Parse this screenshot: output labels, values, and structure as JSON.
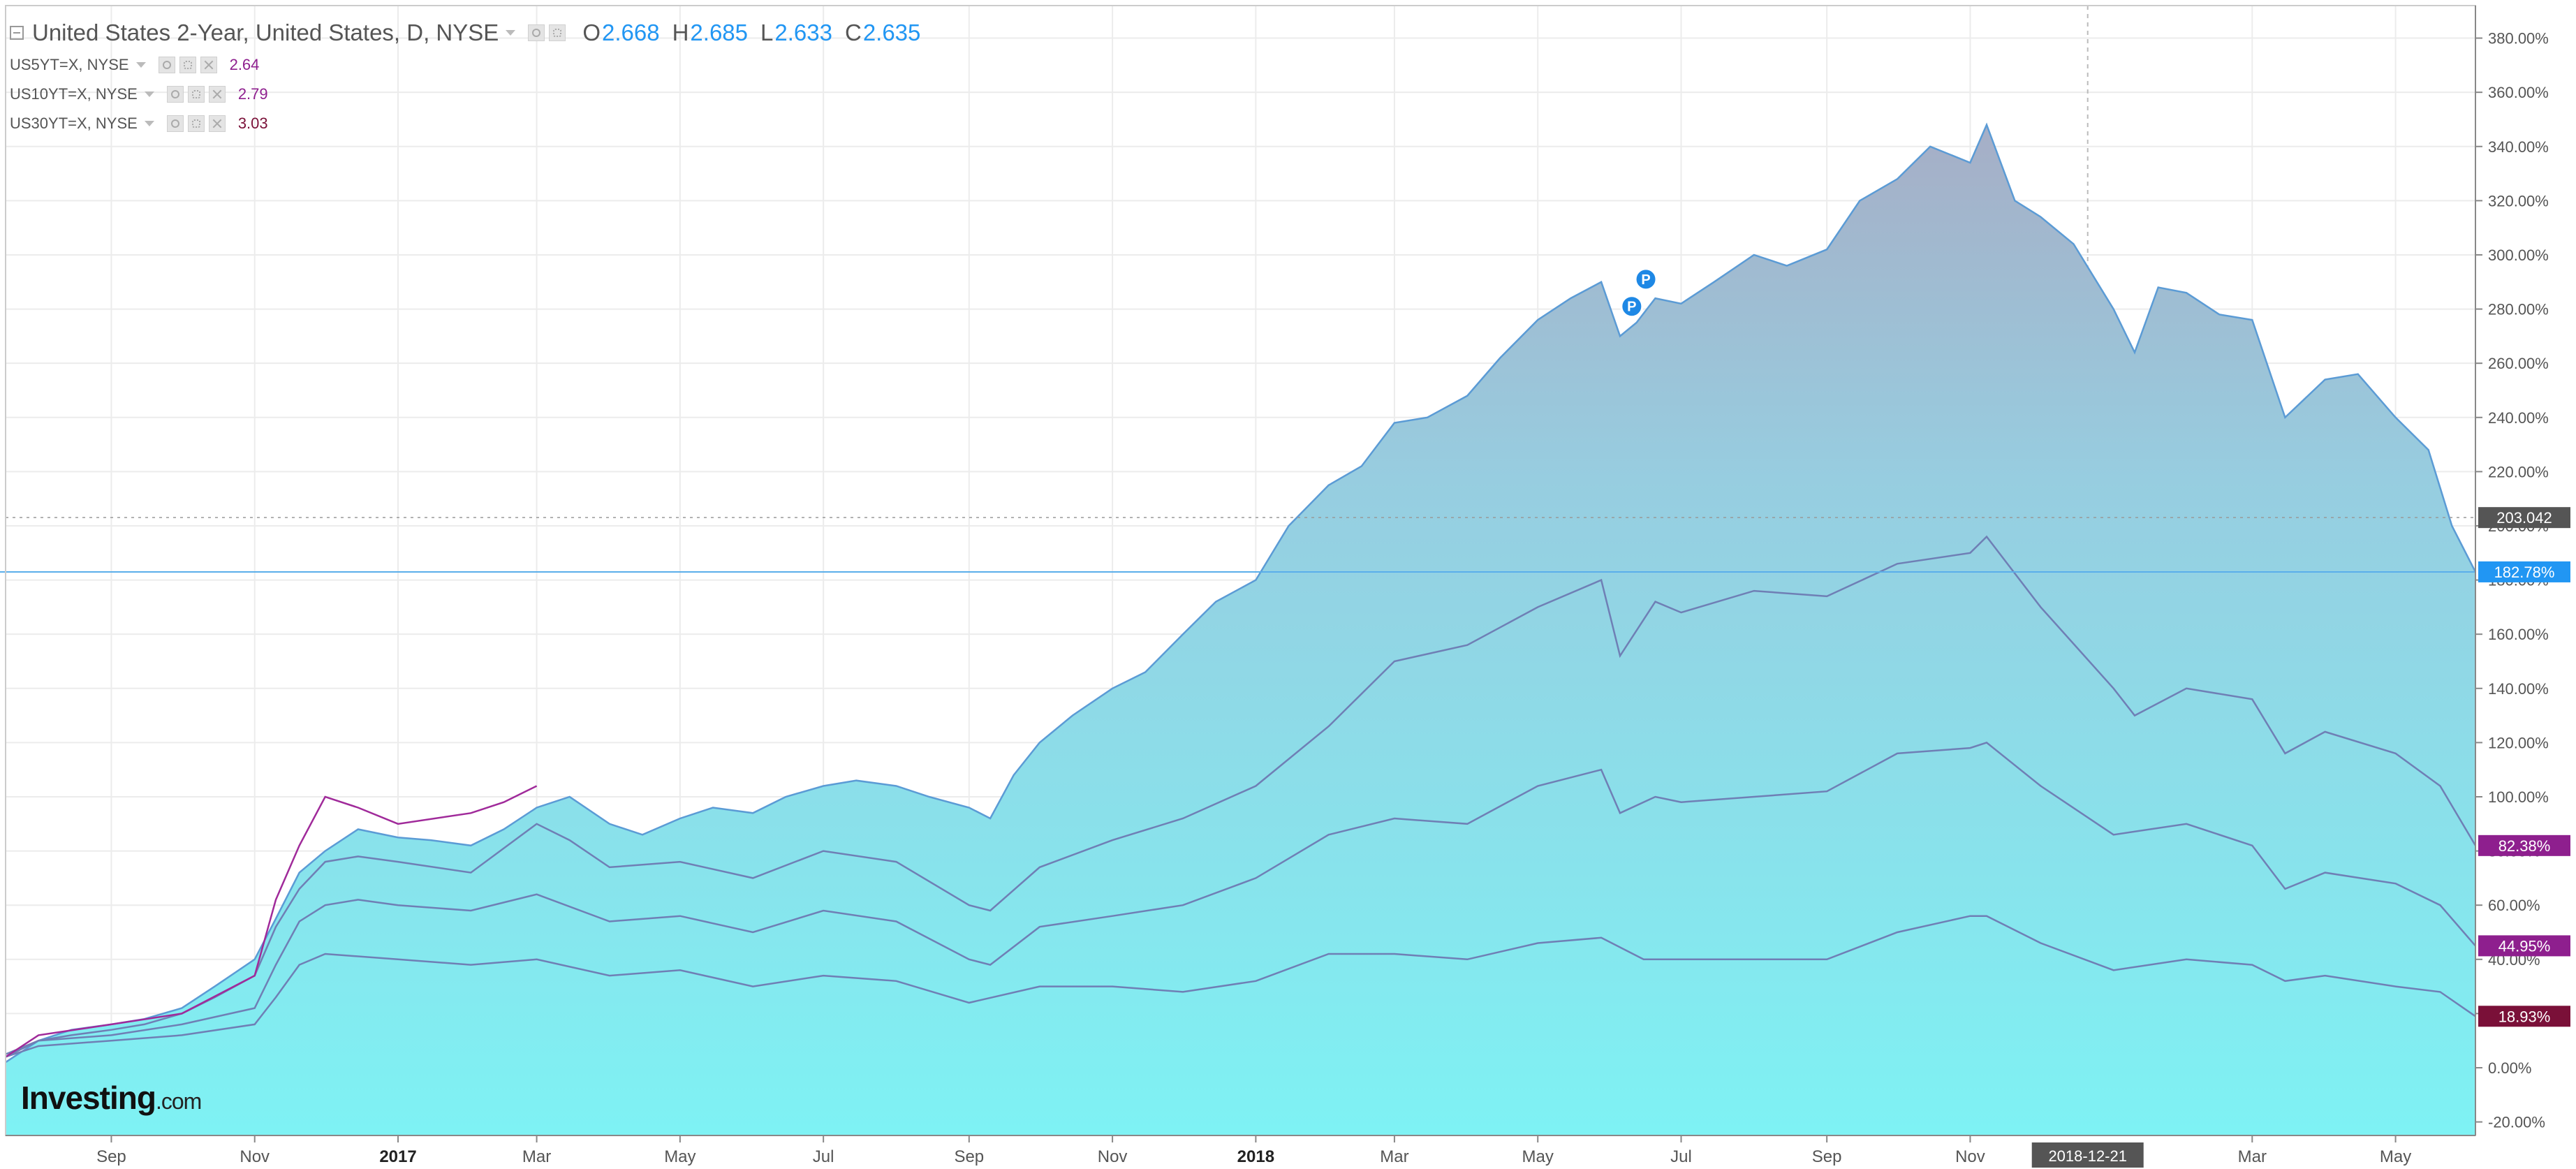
{
  "legend": {
    "main": {
      "name": "United States 2-Year, United States, D, NYSE",
      "o_label": "O",
      "o": "2.668",
      "h_label": "H",
      "h": "2.685",
      "l_label": "L",
      "l": "2.633",
      "c_label": "C",
      "c": "2.635"
    },
    "overlays": [
      {
        "name": "US5YT=X, NYSE",
        "value": "2.64",
        "color": "#8e1f8e"
      },
      {
        "name": "US10YT=X, NYSE",
        "value": "2.79",
        "color": "#8e1f8e"
      },
      {
        "name": "US30YT=X, NYSE",
        "value": "3.03",
        "color": "#7a1038"
      }
    ]
  },
  "brand": {
    "main": "Investing",
    "suffix": ".com"
  },
  "chart_data": {
    "type": "area",
    "title": "United States 2-Year, United States, D, NYSE",
    "ylabel": "",
    "xlabel": "",
    "ylim": [
      -25,
      392
    ],
    "yticks": [
      -20,
      0,
      20,
      40,
      60,
      80,
      100,
      120,
      140,
      160,
      180,
      200,
      220,
      240,
      260,
      280,
      300,
      320,
      340,
      360,
      380
    ],
    "ytick_suffix": "%",
    "x_range": [
      "2016-07-18",
      "2019-06-04"
    ],
    "xticks": [
      {
        "label": "Sep",
        "date": "2016-09-01",
        "bold": false
      },
      {
        "label": "Nov",
        "date": "2016-11-01",
        "bold": false
      },
      {
        "label": "2017",
        "date": "2017-01-01",
        "bold": true
      },
      {
        "label": "Mar",
        "date": "2017-03-01",
        "bold": false
      },
      {
        "label": "May",
        "date": "2017-05-01",
        "bold": false
      },
      {
        "label": "Jul",
        "date": "2017-07-01",
        "bold": false
      },
      {
        "label": "Sep",
        "date": "2017-09-01",
        "bold": false
      },
      {
        "label": "Nov",
        "date": "2017-11-01",
        "bold": false
      },
      {
        "label": "2018",
        "date": "2018-01-01",
        "bold": true
      },
      {
        "label": "Mar",
        "date": "2018-03-01",
        "bold": false
      },
      {
        "label": "May",
        "date": "2018-05-01",
        "bold": false
      },
      {
        "label": "Jul",
        "date": "2018-07-01",
        "bold": false
      },
      {
        "label": "Sep",
        "date": "2018-09-01",
        "bold": false
      },
      {
        "label": "Nov",
        "date": "2018-11-01",
        "bold": false
      },
      {
        "label": "Mar",
        "date": "2019-03-01",
        "bold": false
      },
      {
        "label": "May",
        "date": "2019-05-01",
        "bold": false
      }
    ],
    "crosshair": {
      "date": "2018-12-21",
      "label": "2018-12-21"
    },
    "price_line": {
      "value": 203.042,
      "label": "203.042"
    },
    "series": [
      {
        "name": "United States 2-Year",
        "color": "#5b9bd5",
        "last_label": "182.78%",
        "label_color": "#2196f3",
        "points": [
          [
            "2016-07-18",
            2
          ],
          [
            "2016-08-01",
            10
          ],
          [
            "2016-08-15",
            14
          ],
          [
            "2016-09-01",
            16
          ],
          [
            "2016-09-15",
            18
          ],
          [
            "2016-10-01",
            22
          ],
          [
            "2016-10-15",
            30
          ],
          [
            "2016-11-01",
            40
          ],
          [
            "2016-11-10",
            55
          ],
          [
            "2016-11-20",
            72
          ],
          [
            "2016-12-01",
            80
          ],
          [
            "2016-12-15",
            88
          ],
          [
            "2017-01-01",
            85
          ],
          [
            "2017-01-15",
            84
          ],
          [
            "2017-02-01",
            82
          ],
          [
            "2017-02-15",
            88
          ],
          [
            "2017-03-01",
            96
          ],
          [
            "2017-03-15",
            100
          ],
          [
            "2017-04-01",
            90
          ],
          [
            "2017-04-15",
            86
          ],
          [
            "2017-05-01",
            92
          ],
          [
            "2017-05-15",
            96
          ],
          [
            "2017-06-01",
            94
          ],
          [
            "2017-06-15",
            100
          ],
          [
            "2017-07-01",
            104
          ],
          [
            "2017-07-15",
            106
          ],
          [
            "2017-08-01",
            104
          ],
          [
            "2017-08-15",
            100
          ],
          [
            "2017-09-01",
            96
          ],
          [
            "2017-09-10",
            92
          ],
          [
            "2017-09-20",
            108
          ],
          [
            "2017-10-01",
            120
          ],
          [
            "2017-10-15",
            130
          ],
          [
            "2017-11-01",
            140
          ],
          [
            "2017-11-15",
            146
          ],
          [
            "2017-12-01",
            160
          ],
          [
            "2017-12-15",
            172
          ],
          [
            "2018-01-01",
            180
          ],
          [
            "2018-01-15",
            200
          ],
          [
            "2018-02-01",
            215
          ],
          [
            "2018-02-15",
            222
          ],
          [
            "2018-03-01",
            238
          ],
          [
            "2018-03-15",
            240
          ],
          [
            "2018-04-01",
            248
          ],
          [
            "2018-04-15",
            262
          ],
          [
            "2018-05-01",
            276
          ],
          [
            "2018-05-15",
            284
          ],
          [
            "2018-05-28",
            290
          ],
          [
            "2018-06-05",
            270
          ],
          [
            "2018-06-12",
            275
          ],
          [
            "2018-06-20",
            284
          ],
          [
            "2018-07-01",
            282
          ],
          [
            "2018-07-15",
            290
          ],
          [
            "2018-08-01",
            300
          ],
          [
            "2018-08-15",
            296
          ],
          [
            "2018-09-01",
            302
          ],
          [
            "2018-09-15",
            320
          ],
          [
            "2018-10-01",
            328
          ],
          [
            "2018-10-15",
            340
          ],
          [
            "2018-11-01",
            334
          ],
          [
            "2018-11-08",
            348
          ],
          [
            "2018-11-20",
            320
          ],
          [
            "2018-12-01",
            314
          ],
          [
            "2018-12-15",
            304
          ],
          [
            "2019-01-01",
            280
          ],
          [
            "2019-01-10",
            264
          ],
          [
            "2019-01-20",
            288
          ],
          [
            "2019-02-01",
            286
          ],
          [
            "2019-02-15",
            278
          ],
          [
            "2019-03-01",
            276
          ],
          [
            "2019-03-15",
            240
          ],
          [
            "2019-04-01",
            254
          ],
          [
            "2019-04-15",
            256
          ],
          [
            "2019-05-01",
            240
          ],
          [
            "2019-05-15",
            228
          ],
          [
            "2019-05-25",
            200
          ],
          [
            "2019-06-04",
            183
          ]
        ]
      },
      {
        "name": "US5YT=X, NYSE",
        "color": "#6f7fb5",
        "last_label": "82.38%",
        "label_color": "#8e1f8e",
        "points": [
          [
            "2016-07-18",
            4
          ],
          [
            "2016-08-01",
            10
          ],
          [
            "2016-08-15",
            12
          ],
          [
            "2016-09-01",
            14
          ],
          [
            "2016-09-15",
            16
          ],
          [
            "2016-10-01",
            20
          ],
          [
            "2016-10-15",
            26
          ],
          [
            "2016-11-01",
            34
          ],
          [
            "2016-11-10",
            52
          ],
          [
            "2016-11-20",
            66
          ],
          [
            "2016-12-01",
            76
          ],
          [
            "2016-12-15",
            78
          ],
          [
            "2017-01-01",
            76
          ],
          [
            "2017-02-01",
            72
          ],
          [
            "2017-03-01",
            90
          ],
          [
            "2017-03-15",
            84
          ],
          [
            "2017-04-01",
            74
          ],
          [
            "2017-05-01",
            76
          ],
          [
            "2017-06-01",
            70
          ],
          [
            "2017-07-01",
            80
          ],
          [
            "2017-08-01",
            76
          ],
          [
            "2017-09-01",
            60
          ],
          [
            "2017-09-10",
            58
          ],
          [
            "2017-10-01",
            74
          ],
          [
            "2017-11-01",
            84
          ],
          [
            "2017-12-01",
            92
          ],
          [
            "2018-01-01",
            104
          ],
          [
            "2018-02-01",
            126
          ],
          [
            "2018-03-01",
            150
          ],
          [
            "2018-04-01",
            156
          ],
          [
            "2018-05-01",
            170
          ],
          [
            "2018-05-28",
            180
          ],
          [
            "2018-06-05",
            152
          ],
          [
            "2018-06-20",
            172
          ],
          [
            "2018-07-01",
            168
          ],
          [
            "2018-08-01",
            176
          ],
          [
            "2018-09-01",
            174
          ],
          [
            "2018-10-01",
            186
          ],
          [
            "2018-11-01",
            190
          ],
          [
            "2018-11-08",
            196
          ],
          [
            "2018-12-01",
            170
          ],
          [
            "2019-01-01",
            140
          ],
          [
            "2019-01-10",
            130
          ],
          [
            "2019-02-01",
            140
          ],
          [
            "2019-03-01",
            136
          ],
          [
            "2019-03-15",
            116
          ],
          [
            "2019-04-01",
            124
          ],
          [
            "2019-05-01",
            116
          ],
          [
            "2019-05-20",
            104
          ],
          [
            "2019-06-04",
            82
          ]
        ]
      },
      {
        "name": "US10YT=X, NYSE",
        "color": "#6f7fb5",
        "last_label": "44.95%",
        "label_color": "#8e1f8e",
        "points": [
          [
            "2016-07-18",
            5
          ],
          [
            "2016-08-01",
            10
          ],
          [
            "2016-09-01",
            12
          ],
          [
            "2016-10-01",
            16
          ],
          [
            "2016-11-01",
            22
          ],
          [
            "2016-11-10",
            38
          ],
          [
            "2016-11-20",
            54
          ],
          [
            "2016-12-01",
            60
          ],
          [
            "2016-12-15",
            62
          ],
          [
            "2017-01-01",
            60
          ],
          [
            "2017-02-01",
            58
          ],
          [
            "2017-03-01",
            64
          ],
          [
            "2017-04-01",
            54
          ],
          [
            "2017-05-01",
            56
          ],
          [
            "2017-06-01",
            50
          ],
          [
            "2017-07-01",
            58
          ],
          [
            "2017-08-01",
            54
          ],
          [
            "2017-09-01",
            40
          ],
          [
            "2017-09-10",
            38
          ],
          [
            "2017-10-01",
            52
          ],
          [
            "2017-11-01",
            56
          ],
          [
            "2017-12-01",
            60
          ],
          [
            "2018-01-01",
            70
          ],
          [
            "2018-02-01",
            86
          ],
          [
            "2018-03-01",
            92
          ],
          [
            "2018-04-01",
            90
          ],
          [
            "2018-05-01",
            104
          ],
          [
            "2018-05-28",
            110
          ],
          [
            "2018-06-05",
            94
          ],
          [
            "2018-06-20",
            100
          ],
          [
            "2018-07-01",
            98
          ],
          [
            "2018-08-01",
            100
          ],
          [
            "2018-09-01",
            102
          ],
          [
            "2018-10-01",
            116
          ],
          [
            "2018-11-01",
            118
          ],
          [
            "2018-11-08",
            120
          ],
          [
            "2018-12-01",
            104
          ],
          [
            "2019-01-01",
            86
          ],
          [
            "2019-02-01",
            90
          ],
          [
            "2019-03-01",
            82
          ],
          [
            "2019-03-15",
            66
          ],
          [
            "2019-04-01",
            72
          ],
          [
            "2019-05-01",
            68
          ],
          [
            "2019-05-20",
            60
          ],
          [
            "2019-06-04",
            45
          ]
        ]
      },
      {
        "name": "US30YT=X, NYSE",
        "color": "#6f7fb5",
        "last_label": "18.93%",
        "label_color": "#7a1038",
        "points": [
          [
            "2016-07-18",
            4
          ],
          [
            "2016-08-01",
            8
          ],
          [
            "2016-09-01",
            10
          ],
          [
            "2016-10-01",
            12
          ],
          [
            "2016-11-01",
            16
          ],
          [
            "2016-11-10",
            26
          ],
          [
            "2016-11-20",
            38
          ],
          [
            "2016-12-01",
            42
          ],
          [
            "2017-01-01",
            40
          ],
          [
            "2017-02-01",
            38
          ],
          [
            "2017-03-01",
            40
          ],
          [
            "2017-04-01",
            34
          ],
          [
            "2017-05-01",
            36
          ],
          [
            "2017-06-01",
            30
          ],
          [
            "2017-07-01",
            34
          ],
          [
            "2017-08-01",
            32
          ],
          [
            "2017-09-01",
            24
          ],
          [
            "2017-10-01",
            30
          ],
          [
            "2017-11-01",
            30
          ],
          [
            "2017-12-01",
            28
          ],
          [
            "2018-01-01",
            32
          ],
          [
            "2018-02-01",
            42
          ],
          [
            "2018-03-01",
            42
          ],
          [
            "2018-04-01",
            40
          ],
          [
            "2018-05-01",
            46
          ],
          [
            "2018-05-28",
            48
          ],
          [
            "2018-06-15",
            40
          ],
          [
            "2018-07-01",
            40
          ],
          [
            "2018-08-01",
            40
          ],
          [
            "2018-09-01",
            40
          ],
          [
            "2018-10-01",
            50
          ],
          [
            "2018-11-01",
            56
          ],
          [
            "2018-11-08",
            56
          ],
          [
            "2018-12-01",
            46
          ],
          [
            "2019-01-01",
            36
          ],
          [
            "2019-02-01",
            40
          ],
          [
            "2019-03-01",
            38
          ],
          [
            "2019-03-15",
            32
          ],
          [
            "2019-04-01",
            34
          ],
          [
            "2019-05-01",
            30
          ],
          [
            "2019-05-20",
            28
          ],
          [
            "2019-06-04",
            19
          ]
        ]
      }
    ],
    "extra_line": {
      "name": "US5YT=X overlay (early period)",
      "color": "#a02a9a",
      "points": [
        [
          "2016-07-18",
          4
        ],
        [
          "2016-08-01",
          12
        ],
        [
          "2016-09-01",
          16
        ],
        [
          "2016-10-01",
          20
        ],
        [
          "2016-11-01",
          34
        ],
        [
          "2016-11-10",
          62
        ],
        [
          "2016-11-20",
          82
        ],
        [
          "2016-12-01",
          100
        ],
        [
          "2016-12-15",
          96
        ],
        [
          "2017-01-01",
          90
        ],
        [
          "2017-02-01",
          94
        ],
        [
          "2017-02-15",
          98
        ],
        [
          "2017-03-01",
          104
        ]
      ]
    },
    "markers": [
      {
        "date": "2018-06-10",
        "value": 281,
        "label": "P"
      },
      {
        "date": "2018-06-16",
        "value": 291,
        "label": "P"
      }
    ]
  }
}
